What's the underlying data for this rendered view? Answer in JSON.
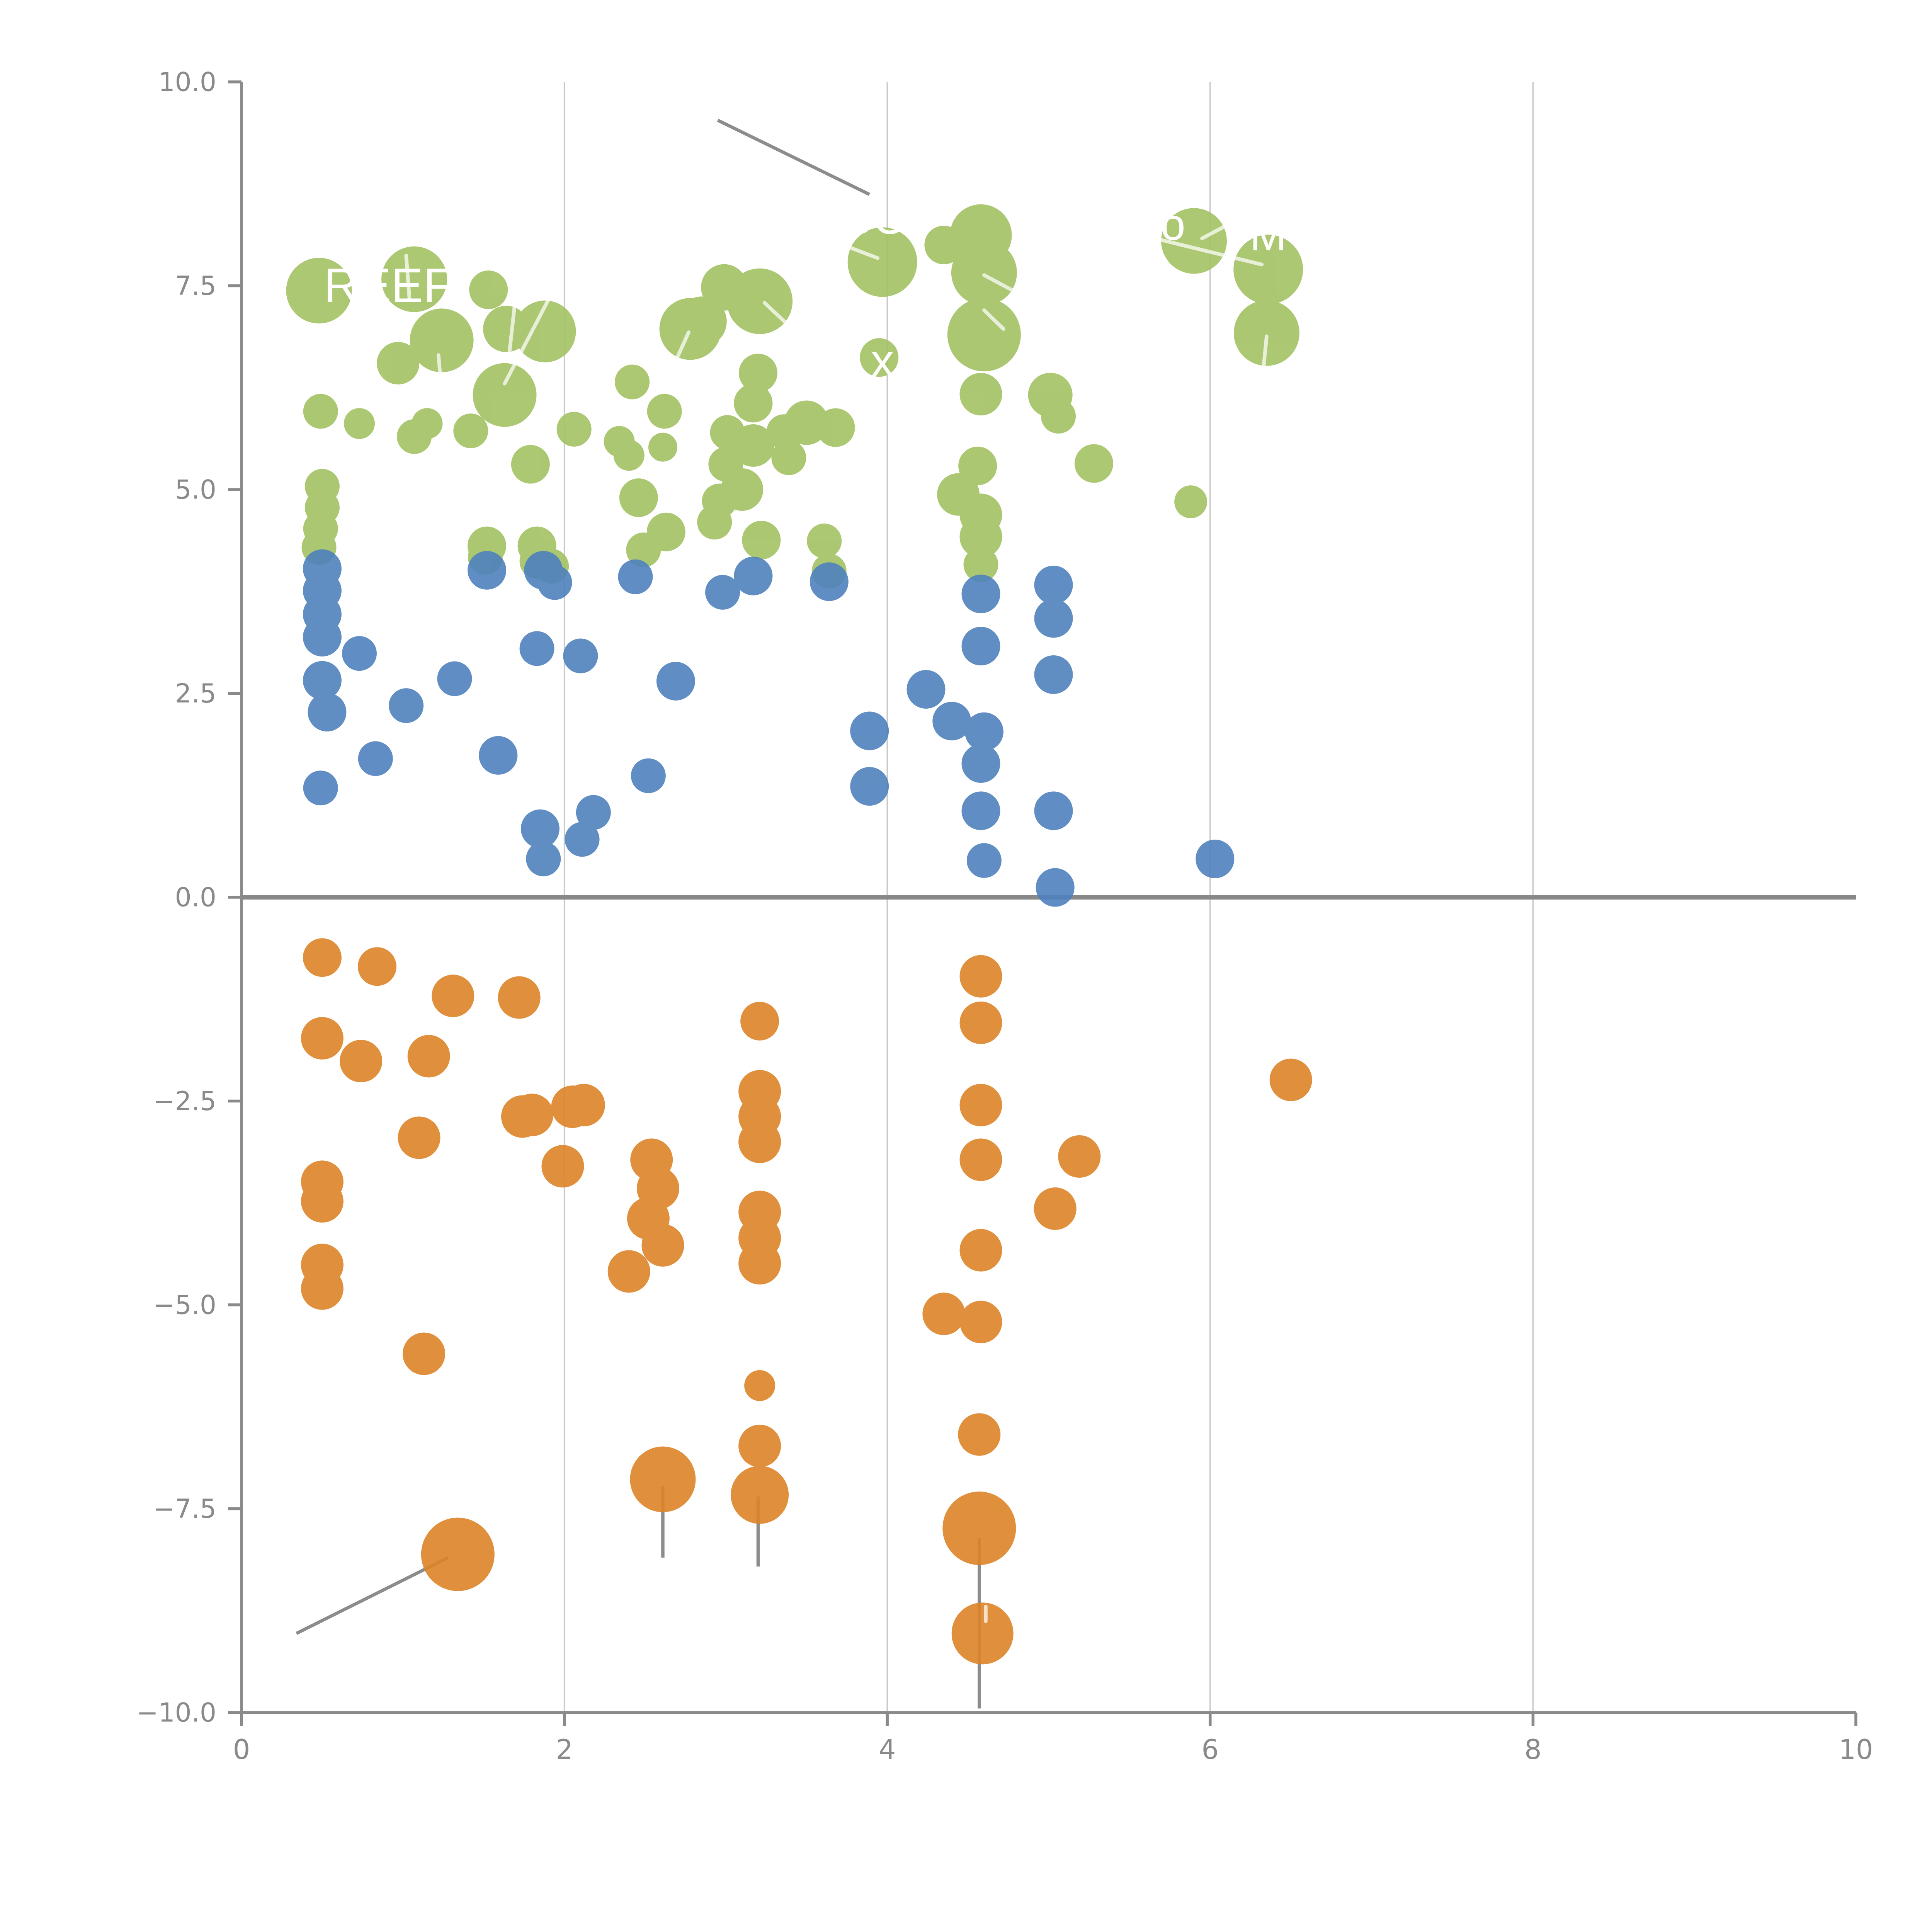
{
  "figure": {
    "background": "#ffffff",
    "description": "Bubble scatter plot, three colored clusters (green above, blue middle, orange below zero line), white partially-hidden text labels and gray leader lines"
  },
  "chart_data": {
    "type": "scatter",
    "title": "",
    "xlabel": "",
    "ylabel": "",
    "xlim": [
      0,
      10
    ],
    "ylim": [
      -10,
      10
    ],
    "grid": "vertical-only",
    "legend": "none",
    "x_ticks": {
      "values": [
        0,
        2,
        4,
        6,
        8,
        10
      ],
      "labels": [
        "0",
        "2",
        "4",
        "6",
        "8",
        "10"
      ]
    },
    "y_ticks": {
      "values": [
        10,
        7.5,
        5,
        2.5,
        0,
        -2.5,
        -5,
        -7.5,
        -10
      ],
      "labels": [
        "10.0",
        "7.5",
        "5.0",
        "2.5",
        "0.0",
        "−2.5",
        "−5.0",
        "−7.5",
        "−10.0"
      ]
    },
    "gridline_x_values": [
      2,
      4,
      6,
      8
    ],
    "zero_line_y": 0,
    "colors": {
      "green": "#a3c263",
      "blue": "#4f81bc",
      "orange": "#dd8428",
      "axis": "#8a8a8a",
      "gridline": "#c9c9c9",
      "zero_line": "#888888",
      "leader_dark": "#8c8c8c",
      "leader_white": "rgba(255,255,255,0.72)"
    },
    "series": [
      {
        "name": "green-cluster",
        "color": "#a3c263",
        "opacity": 0.9,
        "points": [
          [
            0.48,
            7.44,
            17
          ],
          [
            1.07,
            7.58,
            17
          ],
          [
            1.53,
            7.45,
            10
          ],
          [
            1.24,
            6.83,
            16.5
          ],
          [
            0.97,
            6.55,
            11
          ],
          [
            1.64,
            6.97,
            12
          ],
          [
            1.88,
            6.94,
            16
          ],
          [
            1.63,
            6.16,
            16.5
          ],
          [
            2.78,
            6.97,
            16
          ],
          [
            2.85,
            7.06,
            13
          ],
          [
            2.99,
            7.48,
            12
          ],
          [
            3.21,
            7.31,
            17
          ],
          [
            3.97,
            7.79,
            18
          ],
          [
            4.35,
            8.0,
            10
          ],
          [
            4.58,
            8.12,
            16
          ],
          [
            4.6,
            7.66,
            17
          ],
          [
            4.6,
            6.9,
            19
          ],
          [
            5.9,
            8.05,
            17
          ],
          [
            6.36,
            7.7,
            18
          ],
          [
            6.35,
            6.92,
            17
          ],
          [
            3.95,
            6.62,
            10
          ],
          [
            3.2,
            6.43,
            10
          ],
          [
            3.17,
            6.06,
            10
          ],
          [
            2.42,
            6.32,
            9
          ],
          [
            2.62,
            5.96,
            9
          ],
          [
            0.49,
            5.96,
            9
          ],
          [
            0.73,
            5.81,
            8
          ],
          [
            1.15,
            5.81,
            8
          ],
          [
            1.07,
            5.65,
            9
          ],
          [
            1.42,
            5.72,
            9
          ],
          [
            2.06,
            5.74,
            9
          ],
          [
            2.34,
            5.59,
            8
          ],
          [
            2.61,
            5.52,
            7.5
          ],
          [
            1.79,
            5.31,
            10
          ],
          [
            2.4,
            5.42,
            8
          ],
          [
            3.01,
            5.7,
            9
          ],
          [
            3.36,
            5.71,
            9
          ],
          [
            3.5,
            5.82,
            11.5
          ],
          [
            3.68,
            5.76,
            10
          ],
          [
            3.17,
            5.54,
            11
          ],
          [
            3.0,
            5.31,
            9
          ],
          [
            3.39,
            5.39,
            9
          ],
          [
            3.1,
            5.0,
            11
          ],
          [
            2.96,
            4.86,
            9
          ],
          [
            2.93,
            4.6,
            9
          ],
          [
            3.22,
            4.38,
            10
          ],
          [
            2.46,
            4.9,
            10
          ],
          [
            2.63,
            4.48,
            10
          ],
          [
            2.49,
            4.26,
            9
          ],
          [
            1.52,
            4.31,
            10
          ],
          [
            1.83,
            4.31,
            10
          ],
          [
            1.51,
            4.17,
            9
          ],
          [
            1.83,
            4.12,
            9
          ],
          [
            1.92,
            4.06,
            9
          ],
          [
            0.5,
            5.04,
            9
          ],
          [
            0.5,
            4.78,
            9
          ],
          [
            0.49,
            4.52,
            9
          ],
          [
            0.48,
            4.29,
            9
          ],
          [
            3.61,
            4.37,
            9
          ],
          [
            3.64,
            4.0,
            9
          ],
          [
            4.56,
            5.29,
            10
          ],
          [
            4.44,
            4.94,
            11
          ],
          [
            4.58,
            4.69,
            11
          ],
          [
            4.58,
            4.42,
            11
          ],
          [
            4.58,
            4.08,
            9
          ],
          [
            4.58,
            6.17,
            11
          ],
          [
            5.01,
            6.16,
            11.5
          ],
          [
            5.06,
            5.9,
            9
          ],
          [
            5.28,
            5.32,
            10
          ],
          [
            5.88,
            4.85,
            8.5
          ]
        ]
      },
      {
        "name": "blue-cluster",
        "color": "#4f81bc",
        "opacity": 0.9,
        "points": [
          [
            0.5,
            4.03,
            10
          ],
          [
            0.5,
            3.76,
            10
          ],
          [
            0.5,
            3.47,
            10
          ],
          [
            0.5,
            3.19,
            10
          ],
          [
            0.5,
            2.66,
            10
          ],
          [
            0.53,
            2.27,
            10
          ],
          [
            0.73,
            2.99,
            9
          ],
          [
            1.02,
            2.35,
            9
          ],
          [
            1.32,
            2.68,
            9
          ],
          [
            0.83,
            1.7,
            9
          ],
          [
            0.49,
            1.34,
            9
          ],
          [
            1.59,
            1.74,
            10
          ],
          [
            1.83,
            3.05,
            9
          ],
          [
            1.52,
            4.01,
            10
          ],
          [
            1.87,
            4.01,
            10
          ],
          [
            1.94,
            3.86,
            9
          ],
          [
            2.44,
            3.93,
            9
          ],
          [
            2.1,
            2.96,
            9
          ],
          [
            2.69,
            2.65,
            10
          ],
          [
            2.52,
            1.49,
            9
          ],
          [
            2.18,
            1.04,
            9
          ],
          [
            2.11,
            0.71,
            9
          ],
          [
            1.85,
            0.84,
            10
          ],
          [
            1.87,
            0.47,
            9
          ],
          [
            2.98,
            3.74,
            9
          ],
          [
            3.17,
            3.94,
            10
          ],
          [
            3.64,
            3.87,
            10
          ],
          [
            3.89,
            2.04,
            10
          ],
          [
            3.89,
            1.36,
            10
          ],
          [
            4.24,
            2.55,
            10
          ],
          [
            4.4,
            2.16,
            10
          ],
          [
            4.6,
            2.03,
            10
          ],
          [
            4.58,
            1.64,
            10
          ],
          [
            4.58,
            1.06,
            10
          ],
          [
            4.58,
            3.72,
            10
          ],
          [
            4.58,
            3.08,
            10
          ],
          [
            5.03,
            3.83,
            10
          ],
          [
            5.03,
            3.42,
            10
          ],
          [
            5.03,
            2.73,
            10
          ],
          [
            5.03,
            1.06,
            10
          ],
          [
            4.6,
            0.45,
            9
          ],
          [
            5.04,
            0.12,
            10
          ],
          [
            6.03,
            0.47,
            10
          ]
        ]
      },
      {
        "name": "orange-cluster",
        "color": "#dd8428",
        "opacity": 0.9,
        "points": [
          [
            0.5,
            -0.74,
            10
          ],
          [
            0.84,
            -0.85,
            10
          ],
          [
            1.31,
            -1.21,
            11
          ],
          [
            1.72,
            -1.23,
            11
          ],
          [
            0.5,
            -1.73,
            11
          ],
          [
            0.74,
            -2.01,
            11
          ],
          [
            1.16,
            -1.95,
            11
          ],
          [
            1.1,
            -2.95,
            11
          ],
          [
            0.5,
            -3.49,
            11
          ],
          [
            0.5,
            -3.73,
            11
          ],
          [
            0.5,
            -4.51,
            11
          ],
          [
            0.5,
            -4.8,
            11
          ],
          [
            1.13,
            -5.6,
            11
          ],
          [
            1.74,
            -2.69,
            11
          ],
          [
            1.8,
            -2.67,
            11
          ],
          [
            2.05,
            -2.57,
            11
          ],
          [
            2.12,
            -2.55,
            11
          ],
          [
            1.99,
            -3.3,
            11
          ],
          [
            2.54,
            -3.22,
            11
          ],
          [
            2.58,
            -3.57,
            11
          ],
          [
            2.52,
            -3.94,
            11
          ],
          [
            2.61,
            -4.27,
            11
          ],
          [
            2.4,
            -4.59,
            11
          ],
          [
            3.21,
            -1.52,
            10
          ],
          [
            3.21,
            -2.38,
            11
          ],
          [
            3.21,
            -2.69,
            11
          ],
          [
            3.21,
            -3.0,
            11
          ],
          [
            3.21,
            -3.86,
            11
          ],
          [
            3.21,
            -4.18,
            11
          ],
          [
            3.21,
            -4.49,
            11
          ],
          [
            4.58,
            -0.97,
            11
          ],
          [
            4.58,
            -1.54,
            11
          ],
          [
            4.58,
            -2.55,
            11
          ],
          [
            4.58,
            -3.22,
            11
          ],
          [
            4.58,
            -4.33,
            11
          ],
          [
            4.35,
            -5.11,
            11
          ],
          [
            4.58,
            -5.21,
            11
          ],
          [
            5.19,
            -3.18,
            11
          ],
          [
            5.04,
            -3.82,
            11
          ],
          [
            6.5,
            -2.24,
            11
          ],
          [
            3.21,
            -5.99,
            8
          ],
          [
            3.21,
            -6.73,
            11
          ],
          [
            3.21,
            -7.33,
            15
          ],
          [
            2.61,
            -7.14,
            17
          ],
          [
            1.34,
            -8.06,
            19
          ],
          [
            4.57,
            -6.59,
            11
          ],
          [
            4.57,
            -7.74,
            19
          ],
          [
            4.59,
            -9.03,
            16
          ]
        ]
      }
    ],
    "leader_lines_dark": [
      [
        2.95,
        9.53,
        3.89,
        8.62
      ],
      [
        0.34,
        -9.03,
        1.28,
        -8.1
      ],
      [
        2.61,
        -7.22,
        2.61,
        -8.1
      ],
      [
        3.2,
        -7.35,
        3.2,
        -8.21
      ],
      [
        4.57,
        -7.86,
        4.57,
        -9.95
      ]
    ],
    "leader_lines_white": [
      [
        1.02,
        7.87,
        1.04,
        7.35
      ],
      [
        1.22,
        6.65,
        1.27,
        5.52
      ],
      [
        1.7,
        7.4,
        1.66,
        6.69
      ],
      [
        1.92,
        7.4,
        1.63,
        6.3
      ],
      [
        2.69,
        6.58,
        2.77,
        6.93
      ],
      [
        3.24,
        7.29,
        3.38,
        7.03
      ],
      [
        3.78,
        7.96,
        3.94,
        7.84
      ],
      [
        4.6,
        7.63,
        4.77,
        7.45
      ],
      [
        4.6,
        7.2,
        4.72,
        6.97
      ],
      [
        5.68,
        8.07,
        6.32,
        7.76
      ],
      [
        5.95,
        8.08,
        6.12,
        8.26
      ],
      [
        6.35,
        6.88,
        6.33,
        6.48
      ],
      [
        4.61,
        -8.7,
        4.61,
        -8.88
      ]
    ],
    "bubble_labels": [
      {
        "text": "REEF",
        "x": 0.51,
        "y": 7.5,
        "anchor": "start",
        "size": 25
      },
      {
        "text": "SU",
        "x": 3.71,
        "y": 8.34,
        "anchor": "start",
        "size": 25
      },
      {
        "text": "x",
        "x": 3.97,
        "y": 6.58,
        "anchor": "middle",
        "size": 24
      },
      {
        "text": "o",
        "x": 5.77,
        "y": 8.25,
        "anchor": "middle",
        "size": 23
      },
      {
        "text": "M",
        "x": 6.36,
        "y": 8.12,
        "anchor": "middle",
        "size": 23
      }
    ]
  }
}
